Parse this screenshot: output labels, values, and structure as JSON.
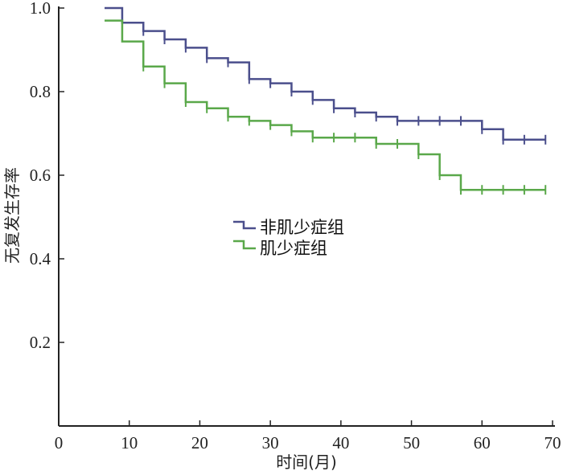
{
  "chart_data": {
    "type": "line",
    "title": "",
    "xlabel": "时间(月)",
    "ylabel": "无复发生存率",
    "xlim": [
      0,
      70
    ],
    "ylim": [
      0,
      1.0
    ],
    "x_ticks": [
      "0",
      "10",
      "20",
      "30",
      "40",
      "50",
      "60",
      "70"
    ],
    "y_ticks": [
      "0.2",
      "0.4",
      "0.6",
      "0.8",
      "1.0"
    ],
    "grid": false,
    "legend_position": "center",
    "series": [
      {
        "name": "非肌少症组",
        "color": "#4b4f8c",
        "step_x": [
          6.5,
          9,
          12,
          15,
          18,
          21,
          24,
          27,
          30,
          33,
          36,
          39,
          42,
          45,
          48,
          51,
          54,
          57,
          60,
          63,
          66,
          69
        ],
        "step_y": [
          1.0,
          0.965,
          0.945,
          0.925,
          0.905,
          0.88,
          0.87,
          0.83,
          0.82,
          0.8,
          0.78,
          0.76,
          0.75,
          0.74,
          0.73,
          0.73,
          0.73,
          0.73,
          0.71,
          0.685,
          0.685,
          0.685
        ],
        "censor_x": [
          12,
          15,
          18,
          21,
          24,
          27,
          30,
          33,
          36,
          39,
          42,
          45,
          48,
          51,
          54,
          57,
          60,
          63,
          66,
          69
        ]
      },
      {
        "name": "肌少症组",
        "color": "#5aa84a",
        "step_x": [
          6.5,
          9,
          12,
          15,
          18,
          21,
          24,
          27,
          30,
          33,
          36,
          39,
          42,
          45,
          48,
          51,
          54,
          57,
          60,
          63,
          66,
          69
        ],
        "step_y": [
          0.97,
          0.92,
          0.86,
          0.82,
          0.775,
          0.76,
          0.74,
          0.73,
          0.72,
          0.705,
          0.69,
          0.69,
          0.69,
          0.675,
          0.675,
          0.65,
          0.6,
          0.565,
          0.565,
          0.565,
          0.565,
          0.565
        ],
        "censor_x": [
          12,
          15,
          18,
          21,
          24,
          27,
          30,
          33,
          36,
          39,
          42,
          45,
          48,
          51,
          54,
          57,
          60,
          63,
          66,
          69
        ]
      }
    ]
  }
}
